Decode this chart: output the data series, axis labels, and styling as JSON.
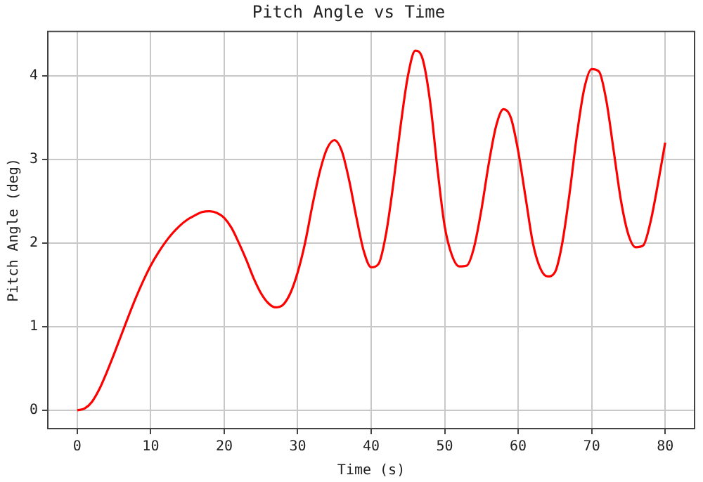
{
  "chart_data": {
    "type": "line",
    "title": "Pitch Angle vs Time",
    "xlabel": "Time (s)",
    "ylabel": "Pitch Angle (deg)",
    "x": [
      0,
      1,
      2,
      3,
      4,
      5,
      6,
      7,
      8,
      9,
      10,
      11,
      12,
      13,
      14,
      15,
      16,
      17,
      18,
      19,
      20,
      21,
      22,
      23,
      24,
      25,
      26,
      27,
      28,
      29,
      30,
      31,
      32,
      33,
      34,
      35,
      36,
      37,
      38,
      39,
      40,
      41,
      42,
      43,
      44,
      45,
      46,
      47,
      48,
      49,
      50,
      51,
      52,
      53,
      54,
      55,
      56,
      57,
      58,
      59,
      60,
      61,
      62,
      63,
      64,
      65,
      66,
      67,
      68,
      69,
      70,
      71,
      72,
      73,
      74,
      75,
      76,
      77,
      78,
      79,
      80
    ],
    "series": [
      {
        "color": "#ff0000",
        "values": [
          0,
          0.02,
          0.1,
          0.25,
          0.45,
          0.67,
          0.9,
          1.13,
          1.35,
          1.55,
          1.73,
          1.88,
          2.01,
          2.12,
          2.21,
          2.28,
          2.33,
          2.37,
          2.38,
          2.36,
          2.3,
          2.18,
          2.0,
          1.8,
          1.58,
          1.4,
          1.28,
          1.23,
          1.26,
          1.4,
          1.65,
          2.0,
          2.45,
          2.85,
          3.13,
          3.23,
          3.1,
          2.75,
          2.3,
          1.9,
          1.71,
          1.75,
          2.1,
          2.7,
          3.4,
          4.0,
          4.3,
          4.2,
          3.7,
          2.9,
          2.2,
          1.85,
          1.72,
          1.73,
          1.95,
          2.4,
          2.95,
          3.4,
          3.6,
          3.5,
          3.1,
          2.55,
          2.0,
          1.7,
          1.6,
          1.65,
          2.0,
          2.6,
          3.3,
          3.85,
          4.08,
          4.05,
          3.7,
          3.1,
          2.5,
          2.1,
          1.95,
          1.97,
          2.25,
          2.7,
          3.2
        ]
      }
    ],
    "xlim": [
      -4,
      84
    ],
    "xticks": [
      0,
      10,
      20,
      30,
      40,
      50,
      60,
      70,
      80
    ],
    "ylim": [
      -0.22,
      4.53
    ],
    "yticks": [
      0,
      1,
      2,
      3,
      4
    ],
    "grid": true,
    "legend": false,
    "marker": "none",
    "line_style": "solid"
  }
}
